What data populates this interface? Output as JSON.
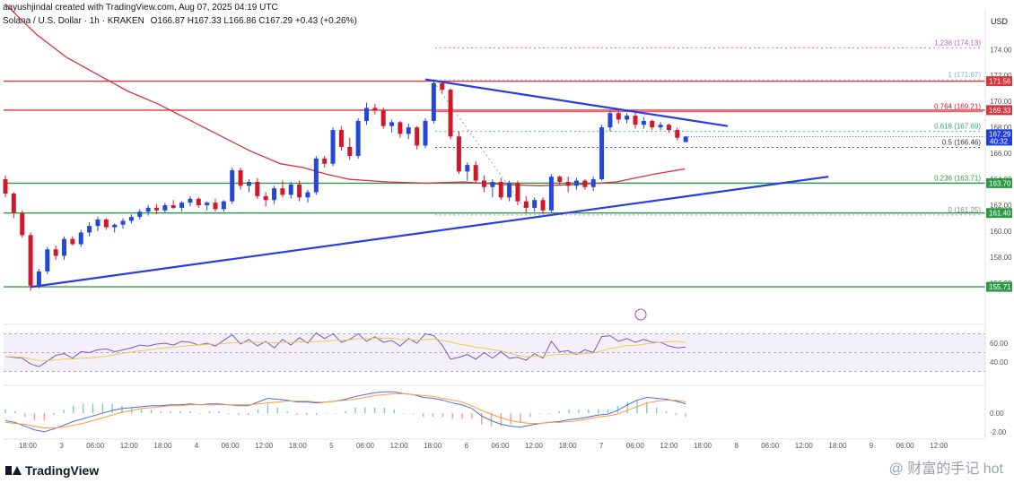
{
  "header": {
    "author_line": "aayushjindal created with TradingView.com, Aug 07, 2025 04:19 UTC",
    "symbol": "Solana / U.S. Dollar · 1h · KRAKEN",
    "ohlc": "O166.87  H167.33  L166.86  C167.29  +0.43 (+0.26%)"
  },
  "axis": {
    "currency": "USD"
  },
  "brand": {
    "name": "TradingView"
  },
  "watermark": {
    "text": "@ 财富的手记 hot"
  },
  "colors": {
    "up": "#2447d6",
    "down": "#d1182b",
    "ma": "#d6333e",
    "trend": "#2a3de0",
    "fib_red": "#e0323c",
    "fib_green": "#2e9a46",
    "rsi": "#7e57c2",
    "macd": "#4c6ed8",
    "signal": "#ff9a3c"
  },
  "chart_data": {
    "type": "candlestick",
    "price_range": [
      153.3,
      175.4
    ],
    "y_ticks": [
      156.0,
      158.0,
      160.0,
      162.0,
      164.0,
      166.0,
      168.0,
      170.0,
      172.0,
      174.0
    ],
    "x_ticks": [
      "18:00",
      "3",
      "06:00",
      "12:00",
      "18:00",
      "4",
      "06:00",
      "12:00",
      "18:00",
      "5",
      "06:00",
      "12:00",
      "18:00",
      "6",
      "06:00",
      "12:00",
      "18:00",
      "7",
      "06:00",
      "12:00",
      "18:00",
      "8",
      "06:00",
      "12:00",
      "18:00",
      "9",
      "06:00",
      "12:00"
    ],
    "fib_levels": [
      {
        "label": "1.236 (174.13)",
        "value": 174.13,
        "color": "#c060c0",
        "dash": true
      },
      {
        "label": "1 (171.67)",
        "value": 171.67,
        "color": "#7fb8d8",
        "dash": true
      },
      {
        "label": "0.764 (169.21)",
        "value": 169.21,
        "color": "#d1182b",
        "dash": false
      },
      {
        "label": "0.618 (167.69)",
        "value": 167.69,
        "color": "#39a07a",
        "dash": true
      },
      {
        "label": "0.5 (166.46)",
        "value": 166.46,
        "color": "#333333",
        "dash": true
      },
      {
        "label": "0.236 (163.71)",
        "value": 163.71,
        "color": "#2e9a46",
        "dash": false
      },
      {
        "label": "0 (161.25)",
        "value": 161.25,
        "color": "#888888",
        "dash": true
      }
    ],
    "horizontal_lines": [
      {
        "value": 171.56,
        "tag": "171.56",
        "color": "#e0323c"
      },
      {
        "value": 169.33,
        "tag": "169.33",
        "color": "#e0323c"
      },
      {
        "value": 163.7,
        "tag": "163.70",
        "color": "#2e9a46"
      },
      {
        "value": 161.4,
        "tag": "161.40",
        "color": "#2e9a46"
      },
      {
        "value": 155.71,
        "tag": "155.71",
        "color": "#2e9a46"
      }
    ],
    "last_price": {
      "value": 167.29,
      "tag": "167.29",
      "countdown": "40:32"
    },
    "candles": [
      [
        164.0,
        164.3,
        162.6,
        162.9
      ],
      [
        162.9,
        163.0,
        161.0,
        161.4
      ],
      [
        161.4,
        161.6,
        159.5,
        159.7
      ],
      [
        159.7,
        159.9,
        155.4,
        155.8
      ],
      [
        155.8,
        157.1,
        155.6,
        156.9
      ],
      [
        156.9,
        158.8,
        156.7,
        158.6
      ],
      [
        158.6,
        158.9,
        157.8,
        158.1
      ],
      [
        158.1,
        159.6,
        157.8,
        159.4
      ],
      [
        159.4,
        159.6,
        158.9,
        159.0
      ],
      [
        159.0,
        160.1,
        158.8,
        159.9
      ],
      [
        159.9,
        160.7,
        159.6,
        160.4
      ],
      [
        160.4,
        161.1,
        160.0,
        160.9
      ],
      [
        160.9,
        161.0,
        160.1,
        160.3
      ],
      [
        160.3,
        160.6,
        159.9,
        160.5
      ],
      [
        160.5,
        161.0,
        160.2,
        160.8
      ],
      [
        160.8,
        161.3,
        160.6,
        161.1
      ],
      [
        161.1,
        161.7,
        160.9,
        161.5
      ],
      [
        161.5,
        162.0,
        161.2,
        161.8
      ],
      [
        161.8,
        162.1,
        161.3,
        161.6
      ],
      [
        161.6,
        162.2,
        161.4,
        162.0
      ],
      [
        162.0,
        162.4,
        161.7,
        161.8
      ],
      [
        161.8,
        162.3,
        161.5,
        162.2
      ],
      [
        162.2,
        162.7,
        161.9,
        162.5
      ],
      [
        162.5,
        162.6,
        161.8,
        162.0
      ],
      [
        162.0,
        162.3,
        161.6,
        162.2
      ],
      [
        162.2,
        162.5,
        161.5,
        161.7
      ],
      [
        161.7,
        162.4,
        161.5,
        162.3
      ],
      [
        162.3,
        164.9,
        162.1,
        164.7
      ],
      [
        164.7,
        164.9,
        163.2,
        163.5
      ],
      [
        163.5,
        164.0,
        163.0,
        163.8
      ],
      [
        163.8,
        164.1,
        162.5,
        162.7
      ],
      [
        162.7,
        163.0,
        161.9,
        162.4
      ],
      [
        162.4,
        163.5,
        162.1,
        163.3
      ],
      [
        163.3,
        163.9,
        162.6,
        162.8
      ],
      [
        162.8,
        163.8,
        162.5,
        163.6
      ],
      [
        163.6,
        163.9,
        162.3,
        162.6
      ],
      [
        162.6,
        163.2,
        162.2,
        163.0
      ],
      [
        163.0,
        165.8,
        162.8,
        165.6
      ],
      [
        165.6,
        165.8,
        164.9,
        165.2
      ],
      [
        165.2,
        168.0,
        165.0,
        167.8
      ],
      [
        167.8,
        168.1,
        166.2,
        166.5
      ],
      [
        166.5,
        167.2,
        165.5,
        165.8
      ],
      [
        165.8,
        168.7,
        165.6,
        168.5
      ],
      [
        168.5,
        169.9,
        168.2,
        169.5
      ],
      [
        169.5,
        169.8,
        169.0,
        169.3
      ],
      [
        169.3,
        169.5,
        167.9,
        168.1
      ],
      [
        168.1,
        168.6,
        167.6,
        168.4
      ],
      [
        168.4,
        168.5,
        167.2,
        167.5
      ],
      [
        167.5,
        168.3,
        167.1,
        168.0
      ],
      [
        168.0,
        168.1,
        166.3,
        166.6
      ],
      [
        166.6,
        168.7,
        166.4,
        168.5
      ],
      [
        168.5,
        171.7,
        168.3,
        171.4
      ],
      [
        171.4,
        171.5,
        170.6,
        170.9
      ],
      [
        170.9,
        171.0,
        167.1,
        167.3
      ],
      [
        167.3,
        167.7,
        164.4,
        164.6
      ],
      [
        164.6,
        165.3,
        163.9,
        165.1
      ],
      [
        165.1,
        165.4,
        163.7,
        163.9
      ],
      [
        163.9,
        164.3,
        163.0,
        163.4
      ],
      [
        163.4,
        164.0,
        162.6,
        163.8
      ],
      [
        163.8,
        164.1,
        162.4,
        162.6
      ],
      [
        162.6,
        163.9,
        162.3,
        163.7
      ],
      [
        163.7,
        163.9,
        162.0,
        162.3
      ],
      [
        162.3,
        162.7,
        161.4,
        161.8
      ],
      [
        161.8,
        162.6,
        161.5,
        162.4
      ],
      [
        162.4,
        162.6,
        161.3,
        161.6
      ],
      [
        161.6,
        164.4,
        161.4,
        164.2
      ],
      [
        164.2,
        164.3,
        163.6,
        163.8
      ],
      [
        163.8,
        164.2,
        163.0,
        163.5
      ],
      [
        163.5,
        164.1,
        163.2,
        163.9
      ],
      [
        163.9,
        164.0,
        163.2,
        163.4
      ],
      [
        163.4,
        164.2,
        163.1,
        164.0
      ],
      [
        164.0,
        168.2,
        163.9,
        168.0
      ],
      [
        168.0,
        169.3,
        167.7,
        169.1
      ],
      [
        169.1,
        169.3,
        168.3,
        168.6
      ],
      [
        168.6,
        169.1,
        168.3,
        168.9
      ],
      [
        168.9,
        169.2,
        167.9,
        168.2
      ],
      [
        168.2,
        168.8,
        167.9,
        168.5
      ],
      [
        168.5,
        168.6,
        167.8,
        168.0
      ],
      [
        168.0,
        168.4,
        167.8,
        168.2
      ],
      [
        168.2,
        168.3,
        167.6,
        167.8
      ],
      [
        167.8,
        168.0,
        167.0,
        167.2
      ],
      [
        166.87,
        167.33,
        166.86,
        167.29
      ]
    ],
    "moving_average": [
      [
        0,
        177.5
      ],
      [
        8,
        175.2
      ],
      [
        16,
        173.4
      ],
      [
        24,
        172.1
      ],
      [
        32,
        170.8
      ],
      [
        40,
        169.8
      ],
      [
        48,
        168.6
      ],
      [
        56,
        167.4
      ],
      [
        64,
        166.2
      ],
      [
        72,
        165.2
      ],
      [
        78,
        164.9
      ],
      [
        84,
        164.4
      ],
      [
        90,
        164.0
      ],
      [
        100,
        163.8
      ],
      [
        110,
        163.7
      ],
      [
        120,
        163.8
      ],
      [
        130,
        163.6
      ],
      [
        140,
        163.5
      ],
      [
        150,
        163.6
      ],
      [
        160,
        163.8
      ],
      [
        170,
        164.4
      ],
      [
        178,
        164.8
      ]
    ],
    "trendlines": [
      {
        "from": [
          3,
          155.7
        ],
        "to": [
          98,
          164.2
        ]
      },
      {
        "from": [
          50,
          171.7
        ],
        "to": [
          86,
          168.1
        ]
      }
    ],
    "rsi": {
      "ticks": [
        40.0,
        60.0
      ],
      "values": [
        46,
        45,
        44,
        38,
        35,
        41,
        47,
        49,
        44,
        51,
        50,
        53,
        54,
        51,
        53,
        55,
        58,
        57,
        59,
        60,
        58,
        62,
        61,
        58,
        60,
        57,
        63,
        69,
        59,
        64,
        57,
        62,
        55,
        64,
        58,
        66,
        60,
        71,
        65,
        70,
        61,
        64,
        70,
        62,
        67,
        61,
        63,
        57,
        65,
        60,
        70,
        68,
        58,
        43,
        45,
        48,
        43,
        50,
        44,
        51,
        44,
        45,
        42,
        49,
        44,
        62,
        51,
        52,
        48,
        53,
        50,
        67,
        68,
        62,
        65,
        61,
        64,
        61,
        61,
        57,
        55,
        56
      ]
    },
    "macd": {
      "ticks": [
        0.0,
        -2.0
      ],
      "macd": [
        -0.8,
        -1.0,
        -1.4,
        -1.8,
        -2.0,
        -1.7,
        -1.3,
        -0.9,
        -0.6,
        -0.3,
        0.0,
        0.3,
        0.5,
        0.6,
        0.7,
        0.8,
        0.8,
        0.9,
        0.9,
        1.0,
        0.9,
        1.0,
        1.0,
        0.9,
        0.8,
        0.8,
        1.2,
        1.6,
        1.5,
        1.4,
        1.2,
        1.2,
        1.1,
        1.2,
        1.3,
        1.5,
        1.8,
        2.0,
        2.2,
        2.3,
        2.3,
        2.1,
        2.0,
        1.7,
        1.6,
        1.4,
        1.1,
        0.9,
        0.5,
        -0.3,
        -0.8,
        -1.2,
        -1.4,
        -1.5,
        -1.3,
        -1.1,
        -1.0,
        -0.9,
        -0.7,
        -0.6,
        -0.4,
        -0.2,
        -0.1,
        0.3,
        0.9,
        1.4,
        1.7,
        1.6,
        1.5,
        1.3,
        1.0
      ],
      "signal": [
        -1.0,
        -1.1,
        -1.2,
        -1.4,
        -1.6,
        -1.6,
        -1.5,
        -1.3,
        -1.1,
        -0.8,
        -0.5,
        -0.2,
        0.1,
        0.3,
        0.5,
        0.6,
        0.7,
        0.8,
        0.8,
        0.9,
        0.9,
        0.9,
        0.9,
        0.9,
        0.9,
        0.9,
        1.0,
        1.1,
        1.2,
        1.3,
        1.3,
        1.3,
        1.2,
        1.2,
        1.3,
        1.4,
        1.5,
        1.7,
        1.9,
        2.0,
        2.1,
        2.1,
        2.0,
        1.9,
        1.8,
        1.6,
        1.4,
        1.2,
        0.8,
        0.3,
        -0.1,
        -0.5,
        -0.8,
        -1.0,
        -1.1,
        -1.1,
        -1.0,
        -1.0,
        -0.9,
        -0.8,
        -0.6,
        -0.4,
        -0.3,
        -0.1,
        0.3,
        0.7,
        1.1,
        1.3,
        1.4,
        1.4,
        1.2
      ]
    }
  }
}
